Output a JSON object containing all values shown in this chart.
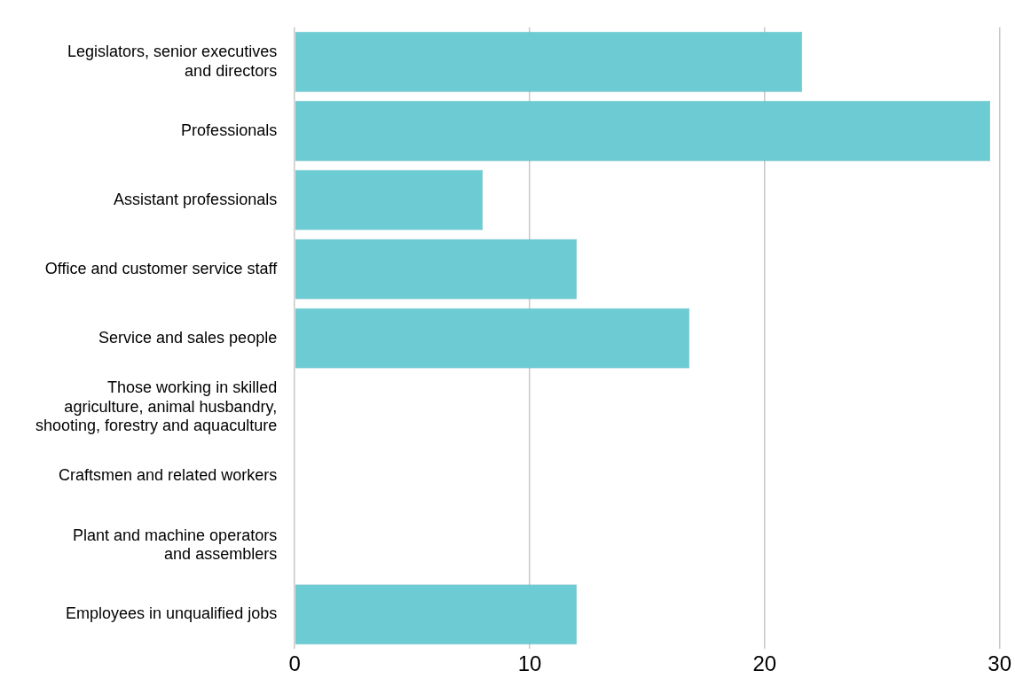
{
  "chart_data": {
    "type": "bar",
    "orientation": "horizontal",
    "categories": [
      "Legislators, senior executives\nand directors",
      "Professionals",
      "Assistant professionals",
      "Office and customer service staff",
      "Service and sales people",
      "Those working in skilled\nagriculture, animal husbandry,\nshooting, forestry and aquaculture",
      "Craftsmen and related workers",
      "Plant and machine operators\nand assemblers",
      "Employees in unqualified jobs"
    ],
    "values": [
      21.6,
      29.6,
      8.0,
      12.0,
      16.8,
      0,
      0,
      0,
      12.0
    ],
    "color": "#6ccbd3",
    "xlim": [
      0,
      30
    ],
    "xticks": [
      0,
      10,
      20,
      30
    ],
    "grid": "x",
    "legend": false
  }
}
